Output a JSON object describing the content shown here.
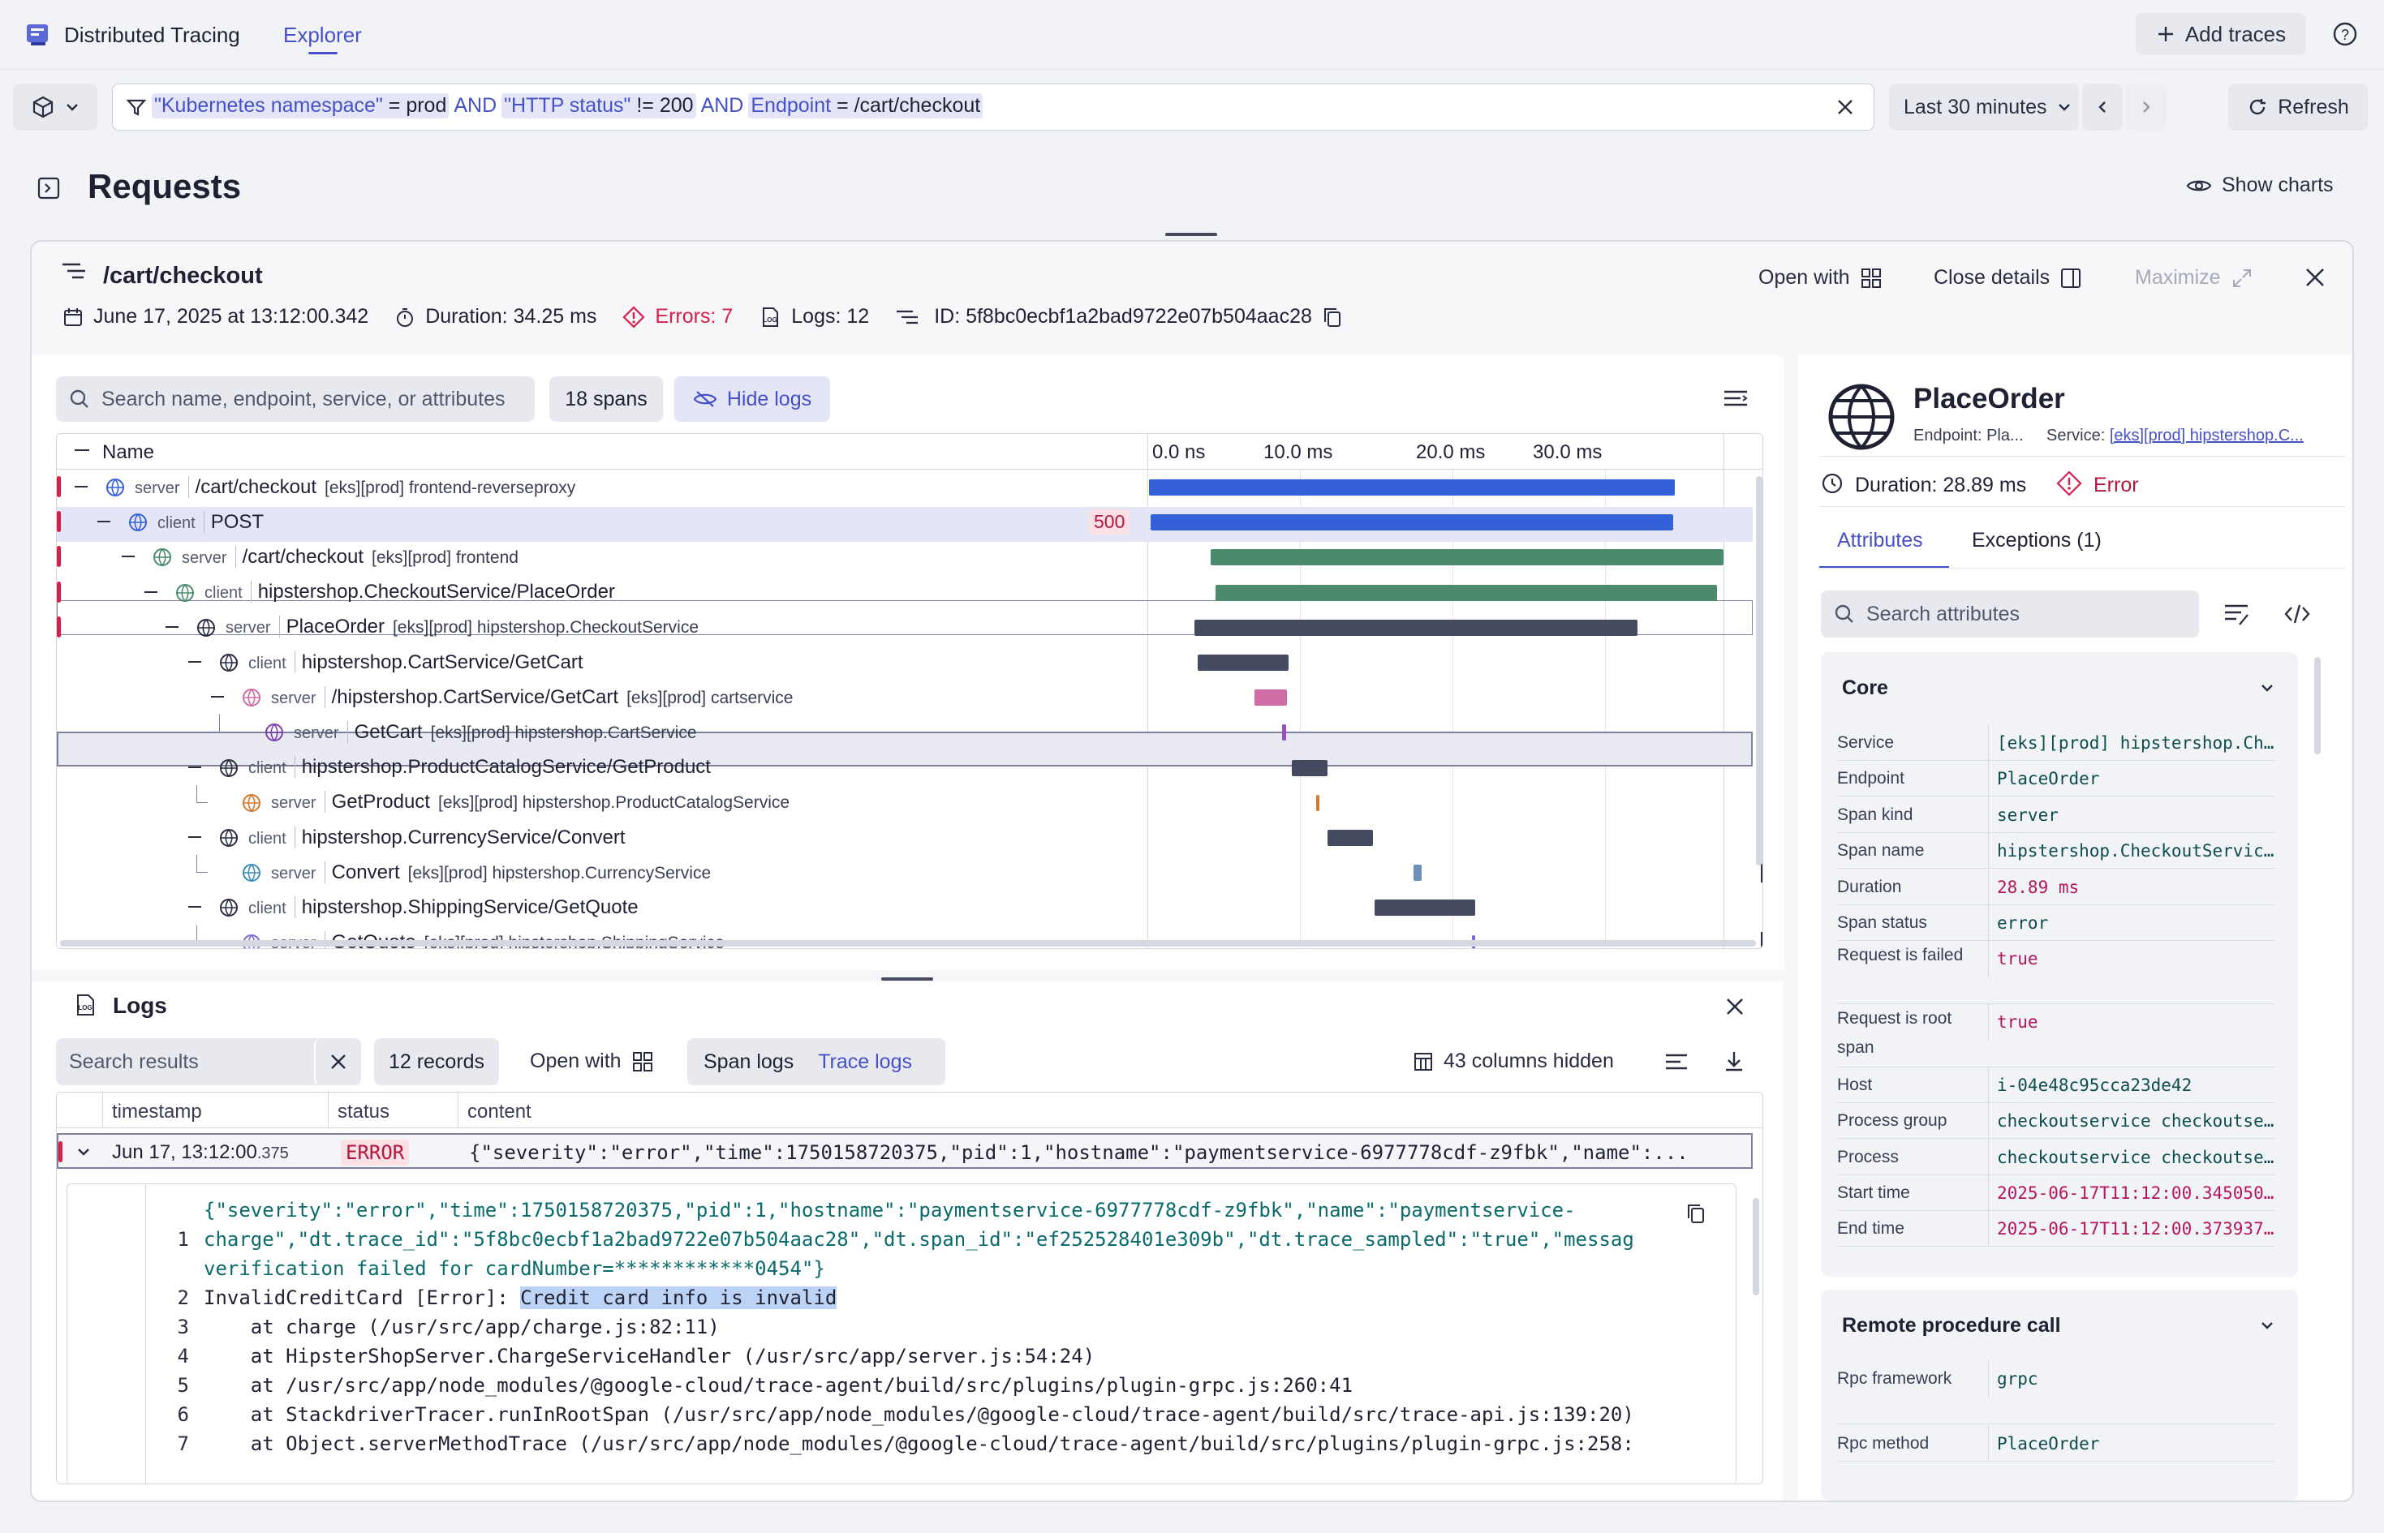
{
  "app": {
    "title": "Distributed Tracing",
    "tab_explorer": "Explorer",
    "add_traces": "Add traces"
  },
  "filter": {
    "tok1_key": "\"Kubernetes namespace\"",
    "tok1_op": "=",
    "tok1_val": "prod",
    "and1": "AND",
    "tok2_key": "\"HTTP status\"",
    "tok2_op": "!=",
    "tok2_val": "200",
    "and2": "AND",
    "tok3_key": "Endpoint",
    "tok3_op": "=",
    "tok3_val": "/cart/checkout",
    "timeframe": "Last 30 minutes",
    "refresh": "Refresh"
  },
  "page": {
    "title": "Requests",
    "show_charts": "Show charts"
  },
  "trace": {
    "title": "/cart/checkout",
    "open_with": "Open with",
    "close_details": "Close details",
    "maximize": "Maximize",
    "date": "June 17, 2025 at 13:12:00.342",
    "duration": "Duration: 34.25 ms",
    "errors": "Errors: 7",
    "logs": "Logs: 12",
    "id": "ID: 5f8bc0ecbf1a2bad9722e07b504aac28"
  },
  "waterfall": {
    "search_placeholder": "Search name, endpoint, service, or attributes",
    "spans_count": "18 spans",
    "hide_logs": "Hide logs",
    "col_name": "Name",
    "ticks": [
      "0.0 ns",
      "10.0 ms",
      "20.0 ms",
      "30.0 ms"
    ],
    "rows": [
      {
        "kind": "server",
        "name": "/cart/checkout",
        "svc": "[eks][prod] frontend-reverseproxy",
        "status": ""
      },
      {
        "kind": "client",
        "name": "POST",
        "svc": "",
        "status": "500"
      },
      {
        "kind": "server",
        "name": "/cart/checkout",
        "svc": "[eks][prod] frontend",
        "status": ""
      },
      {
        "kind": "client",
        "name": "hipstershop.CheckoutService/PlaceOrder",
        "svc": "",
        "status": ""
      },
      {
        "kind": "server",
        "name": "PlaceOrder",
        "svc": "[eks][prod] hipstershop.CheckoutService",
        "status": ""
      },
      {
        "kind": "client",
        "name": "hipstershop.CartService/GetCart",
        "svc": "",
        "status": ""
      },
      {
        "kind": "server",
        "name": "/hipstershop.CartService/GetCart",
        "svc": "[eks][prod] cartservice",
        "status": ""
      },
      {
        "kind": "server",
        "name": "GetCart",
        "svc": "[eks][prod] hipstershop.CartService",
        "status": ""
      },
      {
        "kind": "client",
        "name": "hipstershop.ProductCatalogService/GetProduct",
        "svc": "",
        "status": ""
      },
      {
        "kind": "server",
        "name": "GetProduct",
        "svc": "[eks][prod] hipstershop.ProductCatalogService",
        "status": ""
      },
      {
        "kind": "client",
        "name": "hipstershop.CurrencyService/Convert",
        "svc": "",
        "status": ""
      },
      {
        "kind": "server",
        "name": "Convert",
        "svc": "[eks][prod] hipstershop.CurrencyService",
        "status": ""
      },
      {
        "kind": "client",
        "name": "hipstershop.ShippingService/GetQuote",
        "svc": "",
        "status": ""
      },
      {
        "kind": "server",
        "name": "GetQuote",
        "svc": "[eks][prod] hipstershop.ShippingService",
        "status": ""
      }
    ]
  },
  "details": {
    "title": "PlaceOrder",
    "endpoint": "Endpoint: Pla...",
    "service_label": "Service:",
    "service_link": "[eks][prod] hipstershop.C...",
    "duration": "Duration: 28.89 ms",
    "error": "Error",
    "tab_attributes": "Attributes",
    "tab_exceptions": "Exceptions (1)",
    "search_placeholder": "Search attributes",
    "core_title": "Core",
    "core": [
      {
        "k": "Service",
        "v": "[eks][prod] hipstershop.Ch..."
      },
      {
        "k": "Endpoint",
        "v": "PlaceOrder"
      },
      {
        "k": "Span kind",
        "v": "server"
      },
      {
        "k": "Span name",
        "v": "hipstershop.CheckoutServic..."
      },
      {
        "k": "Duration",
        "v": "28.89 ms"
      },
      {
        "k": "Span status",
        "v": "error"
      },
      {
        "k": "Request is failed",
        "v": "true"
      },
      {
        "k": "Request is root span",
        "v": "true"
      },
      {
        "k": "Host",
        "v": "i-04e48c95cca23de42"
      },
      {
        "k": "Process group",
        "v": "checkoutservice checkoutse..."
      },
      {
        "k": "Process",
        "v": "checkoutservice checkoutse..."
      },
      {
        "k": "Start time",
        "v": "2025-06-17T11:12:00.345050..."
      },
      {
        "k": "End time",
        "v": "2025-06-17T11:12:00.373937..."
      }
    ],
    "rpc_title": "Remote procedure call",
    "rpc": [
      {
        "k": "Rpc framework",
        "v": "grpc"
      },
      {
        "k": "Rpc method",
        "v": "PlaceOrder"
      }
    ]
  },
  "logs": {
    "title": "Logs",
    "search_placeholder": "Search results",
    "records": "12 records",
    "open_with": "Open with",
    "span_logs": "Span logs",
    "trace_logs": "Trace logs",
    "columns_hidden": "43 columns hidden",
    "col_timestamp": "timestamp",
    "col_status": "status",
    "col_content": "content",
    "row": {
      "ts": "Jun 17, 13:12:00",
      "ts_ms": ".375",
      "status": "ERROR",
      "content": "{\"severity\":\"error\",\"time\":1750158720375,\"pid\":1,\"hostname\":\"paymentservice-6977778cdf-z9fbk\",\"name\":..."
    },
    "code": {
      "l1a": "{\"severity\":\"error\",\"time\":1750158720375,\"pid\":1,\"hostname\":\"paymentservice-6977778cdf-z9fbk\",\"name\":\"paymentservice-",
      "l1b": "charge\",\"dt.trace_id\":\"5f8bc0ecbf1a2bad9722e07b504aac28\",\"dt.span_id\":\"ef252528401e309b\",\"dt.trace_sampled\":\"true\",\"messag",
      "l1c": "verification failed for cardNumber=************0454\"}",
      "l2a": "InvalidCreditCard [Error]: ",
      "l2b": "Credit card info is invalid",
      "l3": "    at charge (/usr/src/app/charge.js:82:11)",
      "l4": "    at HipsterShopServer.ChargeServiceHandler (/usr/src/app/server.js:54:24)",
      "l5": "    at /usr/src/app/node_modules/@google-cloud/trace-agent/build/src/plugins/plugin-grpc.js:260:41",
      "l6": "    at StackdriverTracer.runInRootSpan (/usr/src/app/node_modules/@google-cloud/trace-agent/build/src/trace-api.js:139:20)",
      "l7": "    at Object.serverMethodTrace (/usr/src/app/node_modules/@google-cloud/trace-agent/build/src/plugins/plugin-grpc.js:258:"
    }
  },
  "colors": {
    "accent": "#4650c8",
    "error": "#d6204b",
    "bar_blue": "#3461d8",
    "bar_green": "#4c8a6e",
    "bar_dark": "#444a60",
    "bar_pink": "#d06ba6"
  }
}
